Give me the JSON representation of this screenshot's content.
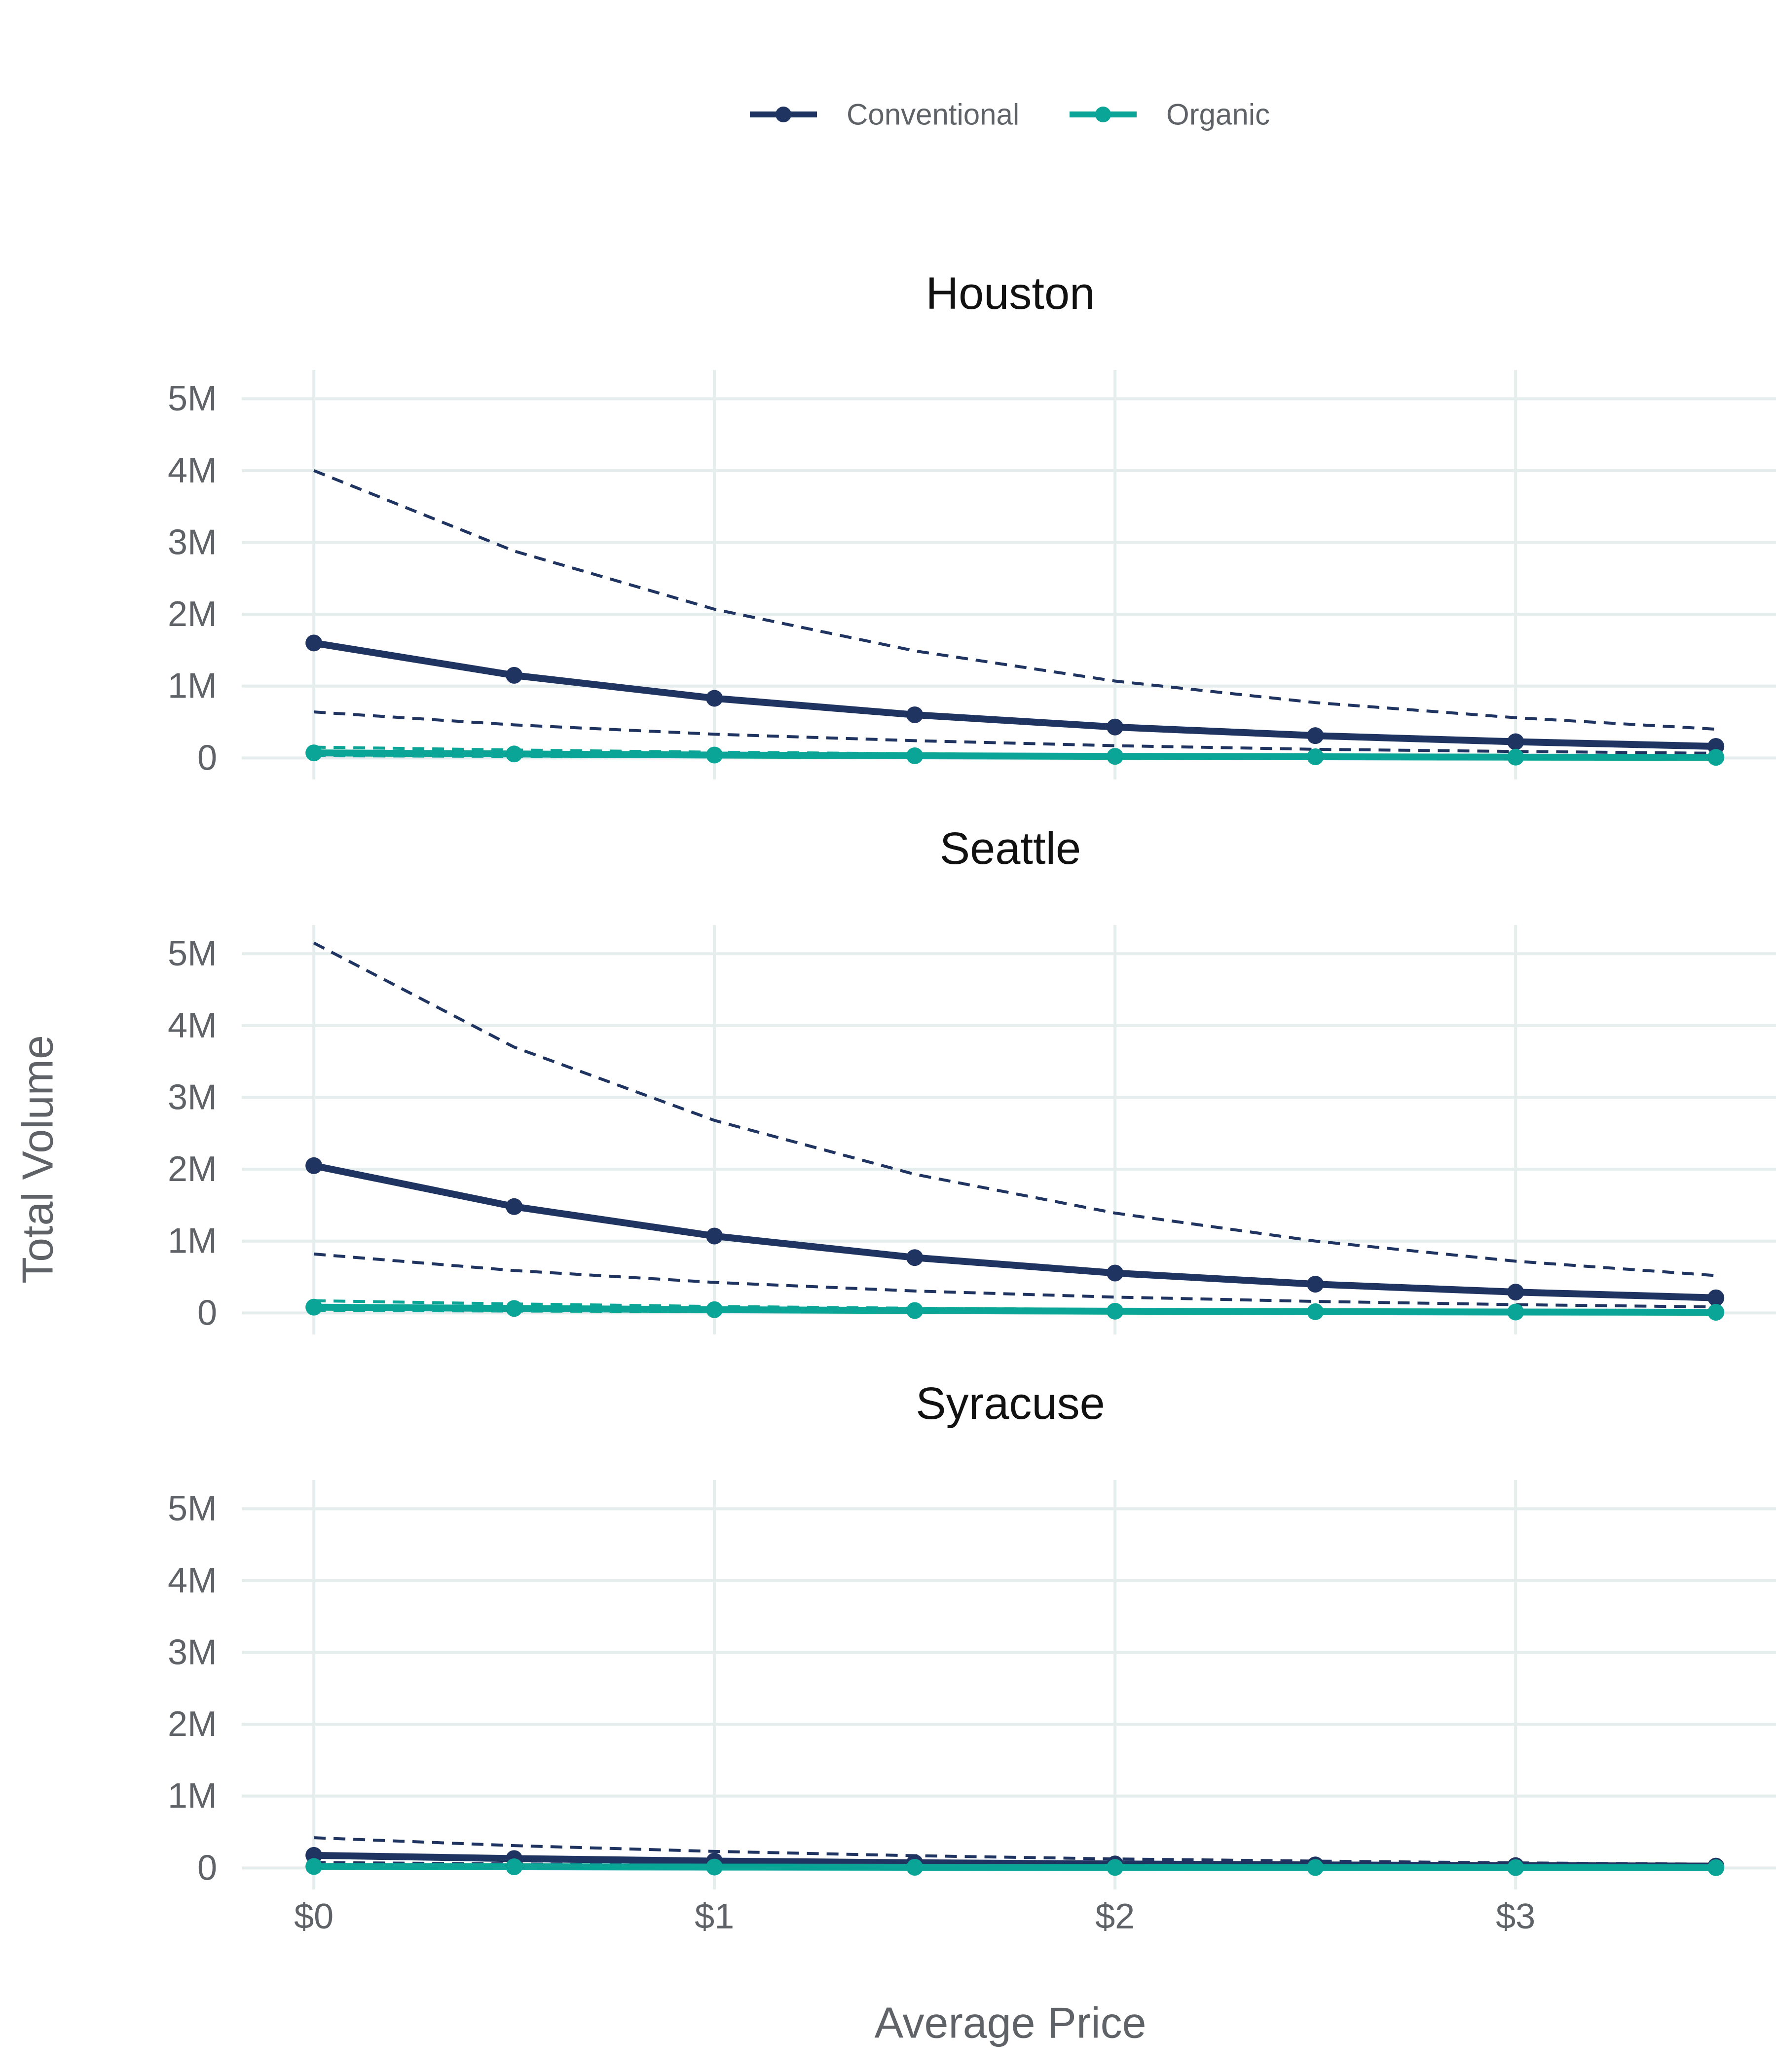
{
  "chart_data": {
    "type": "line",
    "xlabel": "Average Price",
    "ylabel": "Total Volume",
    "x": [
      0,
      0.5,
      1,
      1.5,
      2,
      2.5,
      3,
      3.5
    ],
    "x_ticks": [
      0,
      1,
      2,
      3
    ],
    "x_tick_labels": [
      "$0",
      "$1",
      "$2",
      "$3"
    ],
    "xlim": [
      -0.18,
      3.65
    ],
    "ylim": [
      -300000,
      5400000
    ],
    "y_ticks": [
      0,
      1000000,
      2000000,
      3000000,
      4000000,
      5000000
    ],
    "y_tick_labels": [
      "0",
      "1M",
      "2M",
      "3M",
      "4M",
      "5M"
    ],
    "grid": true,
    "legend": {
      "position": "top",
      "entries": [
        "Conventional",
        "Organic"
      ]
    },
    "colors": {
      "Conventional": "#1f3461",
      "Organic": "#0aa596",
      "grid": "#e6eded"
    },
    "facets": [
      {
        "title": "Houston",
        "series": [
          {
            "name": "Conventional",
            "values": [
              1600000,
              1150000,
              830000,
              600000,
              430000,
              310000,
              225000,
              160000
            ]
          },
          {
            "name": "Organic",
            "values": [
              70000,
              55000,
              40000,
              30000,
              22000,
              16000,
              11000,
              8000
            ]
          }
        ],
        "bands": [
          {
            "series": "Conventional",
            "upper": [
              4000000,
              2880000,
              2070000,
              1490000,
              1070000,
              770000,
              560000,
              400000
            ],
            "lower": [
              640000,
              460000,
              330000,
              240000,
              170000,
              120000,
              90000,
              65000
            ]
          },
          {
            "series": "Organic",
            "upper": [
              150000,
              110000,
              80000,
              58000,
              42000,
              30000,
              22000,
              16000
            ],
            "lower": [
              30000,
              22000,
              16000,
              12000,
              9000,
              6500,
              4800,
              3500
            ]
          }
        ]
      },
      {
        "title": "Seattle",
        "series": [
          {
            "name": "Conventional",
            "values": [
              2050000,
              1480000,
              1070000,
              770000,
              555000,
              400000,
              290000,
              210000
            ]
          },
          {
            "name": "Organic",
            "values": [
              80000,
              62000,
              45000,
              33000,
              24000,
              17000,
              12500,
              9000
            ]
          }
        ],
        "bands": [
          {
            "series": "Conventional",
            "upper": [
              5150000,
              3700000,
              2680000,
              1930000,
              1390000,
              1000000,
              720000,
              520000
            ],
            "lower": [
              820000,
              590000,
              425000,
              305000,
              220000,
              160000,
              115000,
              83000
            ]
          },
          {
            "series": "Organic",
            "upper": [
              170000,
              125000,
              90000,
              65000,
              47000,
              34000,
              24000,
              17000
            ],
            "lower": [
              35000,
              26000,
              19000,
              14000,
              10000,
              7200,
              5200,
              3800
            ]
          }
        ]
      },
      {
        "title": "Syracuse",
        "series": [
          {
            "name": "Conventional",
            "values": [
              175000,
              130000,
              95000,
              72000,
              55000,
              42000,
              32000,
              25000
            ]
          },
          {
            "name": "Organic",
            "values": [
              20000,
              16000,
              12000,
              9000,
              7000,
              5500,
              4300,
              3300
            ]
          }
        ],
        "bands": [
          {
            "series": "Conventional",
            "upper": [
              420000,
              310000,
              230000,
              170000,
              125000,
              95000,
              70000,
              52000
            ],
            "lower": [
              75000,
              56000,
              42000,
              31000,
              23000,
              17000,
              13000,
              10000
            ]
          },
          {
            "series": "Organic",
            "upper": [
              42000,
              33000,
              25000,
              19000,
              14000,
              11000,
              8500,
              6500
            ],
            "lower": [
              8000,
              6000,
              4500,
              3400,
              2600,
              2000,
              1500,
              1100
            ]
          }
        ]
      }
    ]
  }
}
